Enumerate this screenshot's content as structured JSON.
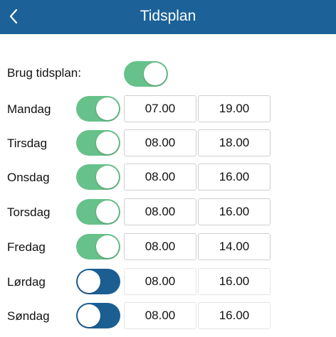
{
  "header": {
    "title": "Tidsplan",
    "back_icon": "chevron-left-icon"
  },
  "schedule": {
    "label": "Brug tidsplan:",
    "enabled": true
  },
  "colors": {
    "header": "#1c6299",
    "toggle_on": "#67c18a",
    "toggle_off": "#1b5f92"
  },
  "days": [
    {
      "name": "Mandag",
      "enabled": true,
      "start": "07.00",
      "end": "19.00"
    },
    {
      "name": "Tirsdag",
      "enabled": true,
      "start": "08.00",
      "end": "18.00"
    },
    {
      "name": "Onsdag",
      "enabled": true,
      "start": "08.00",
      "end": "16.00"
    },
    {
      "name": "Torsdag",
      "enabled": true,
      "start": "08.00",
      "end": "16.00"
    },
    {
      "name": "Fredag",
      "enabled": true,
      "start": "08.00",
      "end": "14.00"
    },
    {
      "name": "Lørdag",
      "enabled": false,
      "start": "08.00",
      "end": "16.00"
    },
    {
      "name": "Søndag",
      "enabled": false,
      "start": "08.00",
      "end": "16.00"
    }
  ]
}
